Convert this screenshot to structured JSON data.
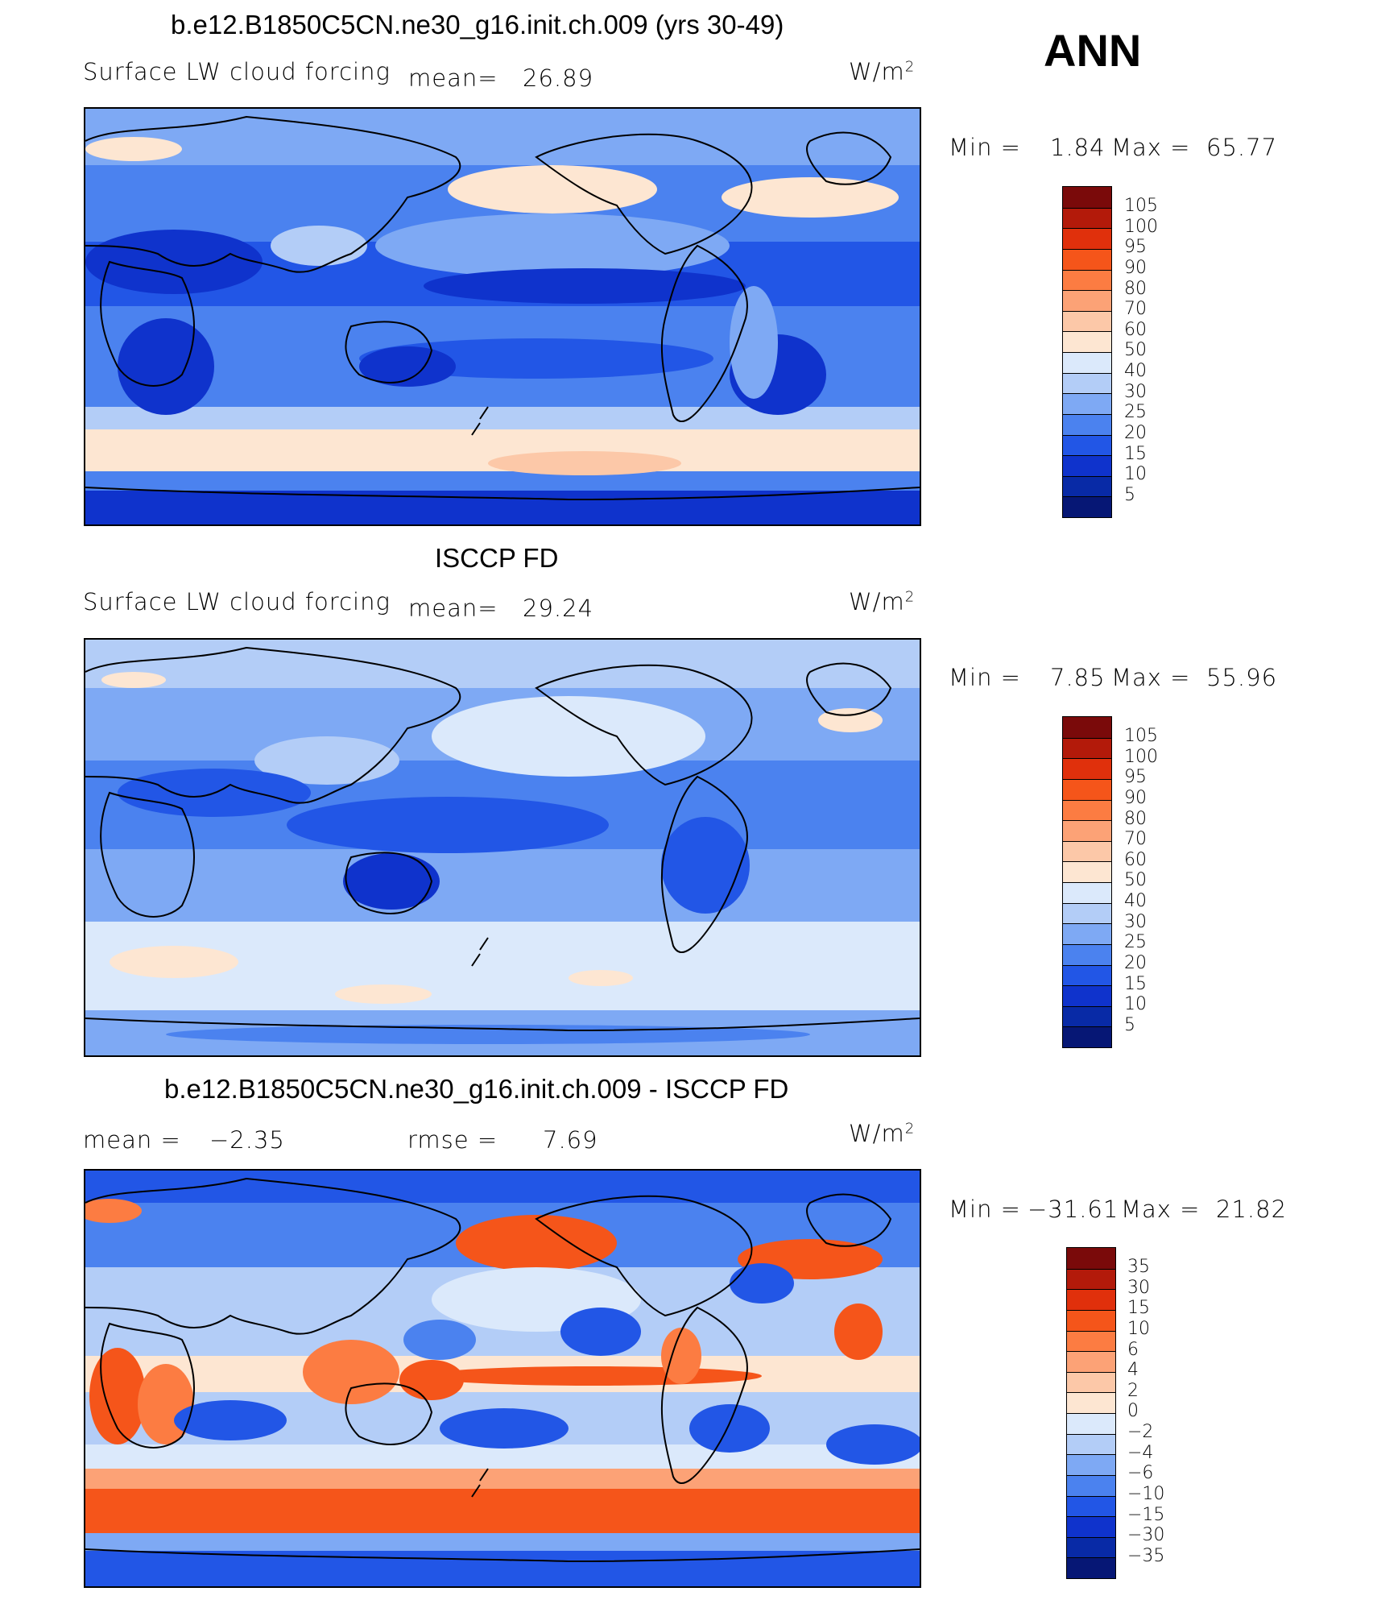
{
  "figure": {
    "season": "ANN",
    "units_base": "W/m",
    "units_exp": "2"
  },
  "panels": [
    {
      "title": "b.e12.B1850C5CN.ne30_g16.init.ch.009 (yrs 30-49)",
      "variable": "Surface LW cloud forcing",
      "mean_label": "mean=",
      "mean_value": "26.89",
      "min_label": "Min =",
      "min_value": "1.84",
      "max_label": "Max =",
      "max_value": "65.77",
      "colorbar_levels": [
        "105",
        "100",
        "95",
        "90",
        "80",
        "70",
        "60",
        "50",
        "40",
        "30",
        "25",
        "20",
        "15",
        "10",
        "5"
      ],
      "colorbar_colors": [
        "#7a0a0a",
        "#b31a0a",
        "#e0300c",
        "#f5551a",
        "#fc7c42",
        "#fca276",
        "#fcc8a8",
        "#fde6d2",
        "#dbe9fb",
        "#b3cdf7",
        "#7ea9f4",
        "#4b82ef",
        "#2256e6",
        "#0f33cc",
        "#082aa6",
        "#061775"
      ]
    },
    {
      "title": "ISCCP FD",
      "variable": "Surface LW cloud forcing",
      "mean_label": "mean=",
      "mean_value": "29.24",
      "min_label": "Min =",
      "min_value": "7.85",
      "max_label": "Max =",
      "max_value": "55.96",
      "colorbar_levels": [
        "105",
        "100",
        "95",
        "90",
        "80",
        "70",
        "60",
        "50",
        "40",
        "30",
        "25",
        "20",
        "15",
        "10",
        "5"
      ],
      "colorbar_colors": [
        "#7a0a0a",
        "#b31a0a",
        "#e0300c",
        "#f5551a",
        "#fc7c42",
        "#fca276",
        "#fcc8a8",
        "#fde6d2",
        "#dbe9fb",
        "#b3cdf7",
        "#7ea9f4",
        "#4b82ef",
        "#2256e6",
        "#0f33cc",
        "#082aa6",
        "#061775"
      ]
    },
    {
      "title": "b.e12.B1850C5CN.ne30_g16.init.ch.009 - ISCCP FD",
      "mean_label": "mean =",
      "mean_value": "−2.35",
      "rmse_label": "rmse =",
      "rmse_value": "7.69",
      "min_label": "Min =",
      "min_value": "−31.61",
      "max_label": "Max =",
      "max_value": "21.82",
      "colorbar_levels": [
        "35",
        "30",
        "15",
        "10",
        "6",
        "4",
        "2",
        "0",
        "−2",
        "−4",
        "−6",
        "−10",
        "−15",
        "−30",
        "−35"
      ],
      "colorbar_colors": [
        "#7a0a0a",
        "#b31a0a",
        "#e0300c",
        "#f5551a",
        "#fc7c42",
        "#fca276",
        "#fcc8a8",
        "#fde6d2",
        "#dbe9fb",
        "#b3cdf7",
        "#7ea9f4",
        "#4b82ef",
        "#2256e6",
        "#0f33cc",
        "#082aa6",
        "#061775"
      ]
    }
  ]
}
